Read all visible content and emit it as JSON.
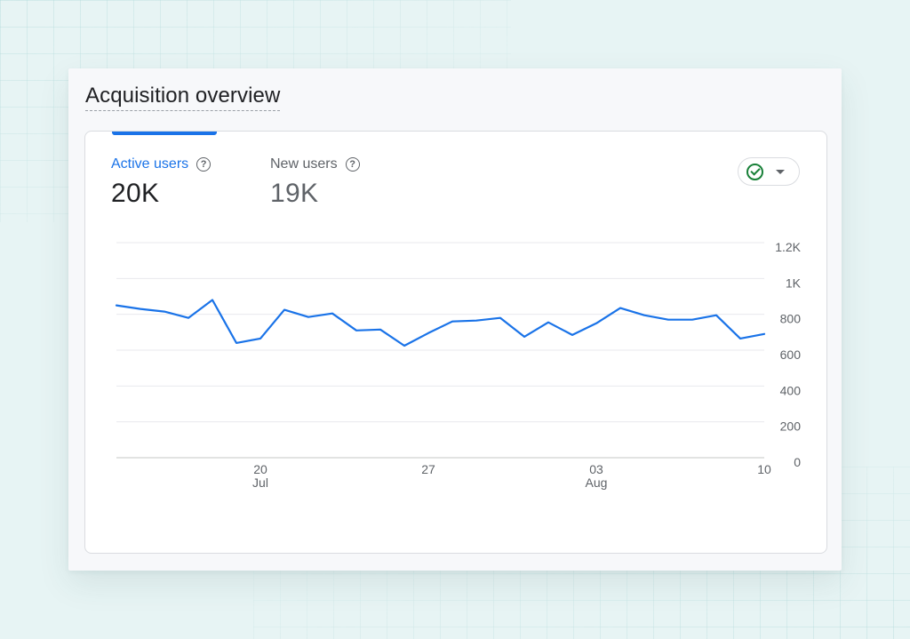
{
  "panel": {
    "title": "Acquisition overview"
  },
  "metrics": {
    "active_users": {
      "label": "Active users",
      "value": "20K"
    },
    "new_users": {
      "label": "New users",
      "value": "19K"
    }
  },
  "icons": {
    "help": "help-circle-icon",
    "status": "check-circle-icon",
    "dropdown": "caret-down-icon"
  },
  "colors": {
    "accent": "#1a73e8",
    "status": "#188038",
    "line": "#1a73e8"
  },
  "chart_data": {
    "type": "line",
    "title": "",
    "xlabel": "",
    "ylabel": "",
    "ylim": [
      0,
      1200
    ],
    "y_ticks": [
      "0",
      "200",
      "400",
      "600",
      "800",
      "1K",
      "1.2K"
    ],
    "x_ticks": [
      {
        "day": "20",
        "month": "Jul",
        "index": 6
      },
      {
        "day": "27",
        "month": "",
        "index": 13
      },
      {
        "day": "03",
        "month": "Aug",
        "index": 20
      },
      {
        "day": "10",
        "month": "",
        "index": 27
      }
    ],
    "x": [
      "Jul 14",
      "Jul 15",
      "Jul 16",
      "Jul 17",
      "Jul 18",
      "Jul 19",
      "Jul 20",
      "Jul 21",
      "Jul 22",
      "Jul 23",
      "Jul 24",
      "Jul 25",
      "Jul 26",
      "Jul 27",
      "Jul 28",
      "Jul 29",
      "Jul 30",
      "Jul 31",
      "Aug 1",
      "Aug 2",
      "Aug 3",
      "Aug 4",
      "Aug 5",
      "Aug 6",
      "Aug 7",
      "Aug 8",
      "Aug 9",
      "Aug 10"
    ],
    "series": [
      {
        "name": "Active users",
        "values": [
          850,
          830,
          815,
          780,
          880,
          640,
          665,
          825,
          785,
          805,
          710,
          715,
          625,
          695,
          760,
          765,
          780,
          675,
          755,
          685,
          750,
          835,
          795,
          770,
          770,
          795,
          665,
          690
        ]
      }
    ],
    "grid": true,
    "legend": "none"
  }
}
